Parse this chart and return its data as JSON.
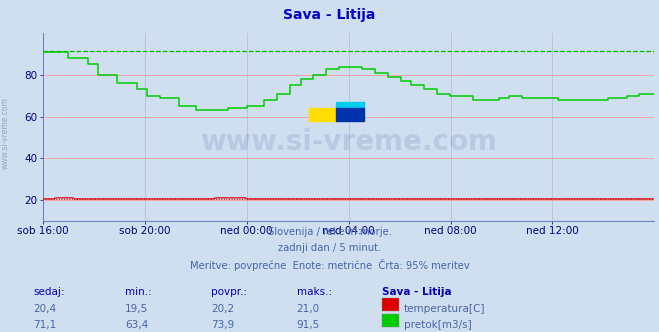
{
  "title": "Sava - Litija",
  "title_color": "#0000cc",
  "bg_color": "#d0dff0",
  "plot_bg_color": "#d0dff0",
  "grid_color_h": "#ff9999",
  "grid_color_v": "#bbbbdd",
  "xlabel_color": "#000080",
  "text_color": "#4466aa",
  "ylim": [
    10,
    100
  ],
  "yticks": [
    20,
    40,
    60,
    80
  ],
  "xtick_labels": [
    "sob 16:00",
    "sob 20:00",
    "ned 00:00",
    "ned 04:00",
    "ned 08:00",
    "ned 12:00"
  ],
  "footnote_lines": [
    "Slovenija / reke in morje.",
    "zadnji dan / 5 minut.",
    "Meritve: povprečne  Enote: metrične  Črta: 95% meritev"
  ],
  "table_headers": [
    "sedaj:",
    "min.:",
    "povpr.:",
    "maks.:",
    "Sava - Litija"
  ],
  "table_row1": [
    "20,4",
    "19,5",
    "20,2",
    "21,0",
    "temperatura[C]"
  ],
  "table_row2": [
    "71,1",
    "63,4",
    "73,9",
    "91,5",
    "pretok[m3/s]"
  ],
  "temp_color": "#dd0000",
  "flow_color": "#00cc00",
  "flow_dashed_color": "#00bb00",
  "temp_dashed_color": "#dd0000",
  "flow_max_val": 91.5,
  "temp_base_val": 20.5,
  "watermark": "www.si-vreme.com",
  "left_label": "www.si-vreme.com"
}
